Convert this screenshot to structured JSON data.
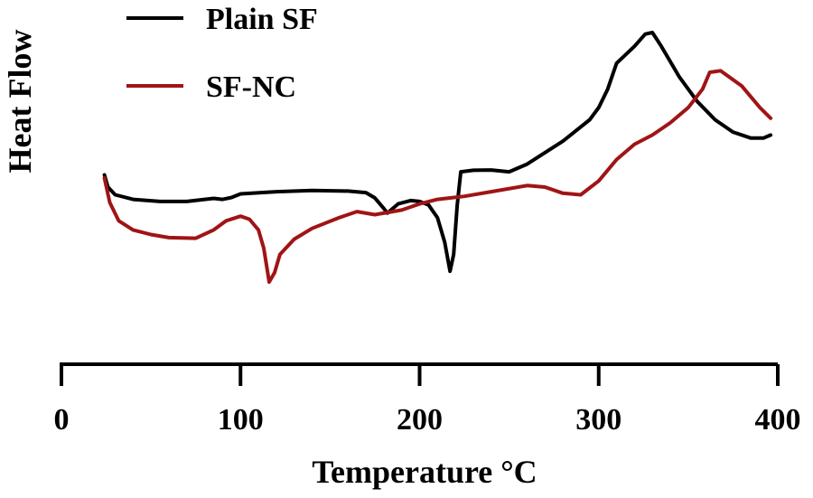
{
  "chart_data": {
    "type": "line",
    "title": "",
    "xlabel": "Temperature °C",
    "ylabel": "Heat Flow",
    "xlim": [
      0,
      400
    ],
    "ylim": [
      0,
      100
    ],
    "x_ticks": [
      0,
      100,
      200,
      300,
      400
    ],
    "y_ticks_shown": false,
    "grid": false,
    "legend_position": "top-left",
    "series": [
      {
        "name": "Plain SF",
        "color": "#000000",
        "points": [
          [
            24,
            60
          ],
          [
            26,
            56
          ],
          [
            30,
            53.5
          ],
          [
            40,
            52
          ],
          [
            55,
            51.3
          ],
          [
            70,
            51.3
          ],
          [
            80,
            52
          ],
          [
            85,
            52.3
          ],
          [
            90,
            52
          ],
          [
            95,
            52.6
          ],
          [
            100,
            53.8
          ],
          [
            120,
            54.5
          ],
          [
            140,
            54.9
          ],
          [
            160,
            54.7
          ],
          [
            170,
            54.2
          ],
          [
            175,
            52.5
          ],
          [
            180,
            49
          ],
          [
            182,
            47.5
          ],
          [
            184,
            48.5
          ],
          [
            188,
            50.5
          ],
          [
            195,
            51.6
          ],
          [
            200,
            51.3
          ],
          [
            205,
            50.2
          ],
          [
            210,
            46
          ],
          [
            214,
            38
          ],
          [
            217,
            28.5
          ],
          [
            219,
            34
          ],
          [
            221,
            50
          ],
          [
            223,
            61
          ],
          [
            230,
            61.5
          ],
          [
            240,
            61.6
          ],
          [
            250,
            61
          ],
          [
            260,
            63.5
          ],
          [
            280,
            71
          ],
          [
            295,
            78
          ],
          [
            300,
            82
          ],
          [
            305,
            88
          ],
          [
            310,
            96.5
          ],
          [
            320,
            102
          ],
          [
            326,
            106
          ],
          [
            330,
            106.5
          ],
          [
            335,
            102
          ],
          [
            345,
            92
          ],
          [
            355,
            84
          ],
          [
            365,
            78
          ],
          [
            375,
            74
          ],
          [
            385,
            72
          ],
          [
            392,
            72
          ],
          [
            396,
            73
          ]
        ]
      },
      {
        "name": "SF-NC",
        "color": "#a01416",
        "points": [
          [
            24,
            59
          ],
          [
            27,
            51
          ],
          [
            32,
            45
          ],
          [
            40,
            42
          ],
          [
            50,
            40.5
          ],
          [
            60,
            39.5
          ],
          [
            75,
            39.3
          ],
          [
            85,
            42
          ],
          [
            92,
            45
          ],
          [
            100,
            46.5
          ],
          [
            105,
            45.5
          ],
          [
            110,
            42
          ],
          [
            113,
            36
          ],
          [
            116,
            25
          ],
          [
            119,
            28
          ],
          [
            122,
            34
          ],
          [
            130,
            39
          ],
          [
            140,
            42.5
          ],
          [
            155,
            46
          ],
          [
            165,
            48
          ],
          [
            175,
            47
          ],
          [
            190,
            48.5
          ],
          [
            200,
            50.5
          ],
          [
            210,
            52
          ],
          [
            225,
            53
          ],
          [
            240,
            54.5
          ],
          [
            260,
            56.5
          ],
          [
            270,
            56
          ],
          [
            280,
            54
          ],
          [
            290,
            53.5
          ],
          [
            300,
            58
          ],
          [
            310,
            65
          ],
          [
            320,
            70
          ],
          [
            330,
            73
          ],
          [
            340,
            77
          ],
          [
            350,
            82
          ],
          [
            358,
            88
          ],
          [
            362,
            93.5
          ],
          [
            368,
            94
          ],
          [
            380,
            89
          ],
          [
            390,
            82
          ],
          [
            396,
            78.5
          ]
        ]
      }
    ]
  }
}
